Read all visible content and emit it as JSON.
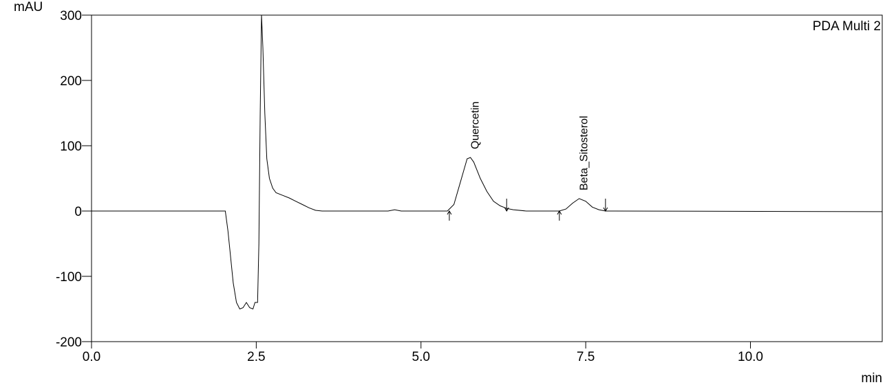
{
  "chart_data": {
    "type": "line",
    "y_label": "mAU",
    "x_label": "min",
    "annotation": "PDA Multi 2",
    "xlim": [
      0,
      12
    ],
    "ylim": [
      -200,
      300
    ],
    "xticks": [
      {
        "value": 0,
        "label": "0.0"
      },
      2.5,
      {
        "value": 5,
        "label": "5.0"
      },
      7.5,
      {
        "value": 10,
        "label": "10.0"
      }
    ],
    "yticks": [
      -200,
      -100,
      0,
      100,
      200,
      300
    ],
    "color": "#000000",
    "x": [
      0,
      2.03,
      2.07,
      2.1,
      2.15,
      2.2,
      2.25,
      2.3,
      2.35,
      2.4,
      2.45,
      2.48,
      2.52,
      2.54,
      2.56,
      2.58,
      2.6,
      2.63,
      2.66,
      2.7,
      2.75,
      2.8,
      2.9,
      3.0,
      3.1,
      3.2,
      3.3,
      3.4,
      3.5,
      4.5,
      4.6,
      4.7,
      5.4,
      5.5,
      5.6,
      5.7,
      5.75,
      5.8,
      5.9,
      6.0,
      6.1,
      6.2,
      6.3,
      6.4,
      6.6,
      7.1,
      7.2,
      7.3,
      7.4,
      7.5,
      7.6,
      7.7,
      7.8,
      12
    ],
    "values": [
      0,
      0,
      -30,
      -60,
      -110,
      -140,
      -150,
      -148,
      -140,
      -148,
      -150,
      -140,
      -140,
      -50,
      150,
      300,
      250,
      150,
      80,
      50,
      35,
      28,
      24,
      20,
      15,
      10,
      5,
      1,
      0,
      0,
      2,
      0,
      0,
      10,
      45,
      80,
      82,
      75,
      50,
      30,
      15,
      8,
      4,
      2,
      0,
      0,
      3,
      12,
      19,
      15,
      6,
      2,
      0,
      -1
    ],
    "peaks": [
      {
        "name": "Quercetin",
        "x": 5.75,
        "start": 5.43,
        "end": 6.3
      },
      {
        "name": "Beta_Sitosterol",
        "x": 7.4,
        "start": 7.1,
        "end": 7.8
      }
    ]
  }
}
